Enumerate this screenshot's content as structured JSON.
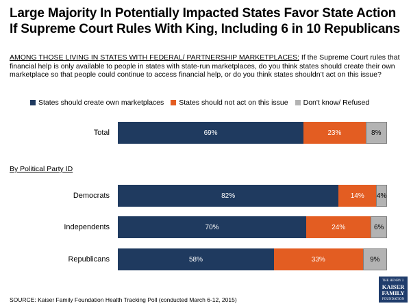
{
  "title": "Large Majority In Potentially Impacted States Favor State Action If Supreme Court Rules With King, Including 6 in 10 Republicans",
  "question": {
    "lead": "AMONG THOSE LIVING IN STATES WITH FEDERAL/ PARTNERSHIP MARKETPLACES:",
    "text": " If the Supreme Court rules that financial help is only available to people in states with state-run marketplaces, do you think states should create their own marketplace so that people could continue to access financial help, or do you think states shouldn’t act on this issue?"
  },
  "section_label": "By Political Party ID",
  "source": "SOURCE: Kaiser Family Foundation Health Tracking Poll (conducted March 6-12, 2015)",
  "logo": {
    "line1": "THE HENRY J.",
    "line2": "KAISER",
    "line3": "FAMILY",
    "line4": "FOUNDATION"
  },
  "colors": {
    "create": "#1f3a5f",
    "not_act": "#e35d22",
    "dont_know": "#b3b3b3"
  },
  "chart_data": {
    "type": "bar",
    "orientation": "horizontal",
    "stacked": true,
    "categories": [
      "Total",
      "Democrats",
      "Independents",
      "Republicans"
    ],
    "series": [
      {
        "name": "States should create own marketplaces",
        "values": [
          69,
          82,
          70,
          58
        ],
        "labels": [
          "69%",
          "82%",
          "70%",
          "58%"
        ]
      },
      {
        "name": "States should not act on this issue",
        "values": [
          23,
          14,
          24,
          33
        ],
        "labels": [
          "23%",
          "14%",
          "24%",
          "33%"
        ]
      },
      {
        "name": "Don't know/ Refused",
        "values": [
          8,
          4,
          6,
          9
        ],
        "labels": [
          "8%",
          "4%",
          "6%",
          "9%"
        ]
      }
    ],
    "xlim": [
      0,
      100
    ],
    "legend": "top"
  }
}
